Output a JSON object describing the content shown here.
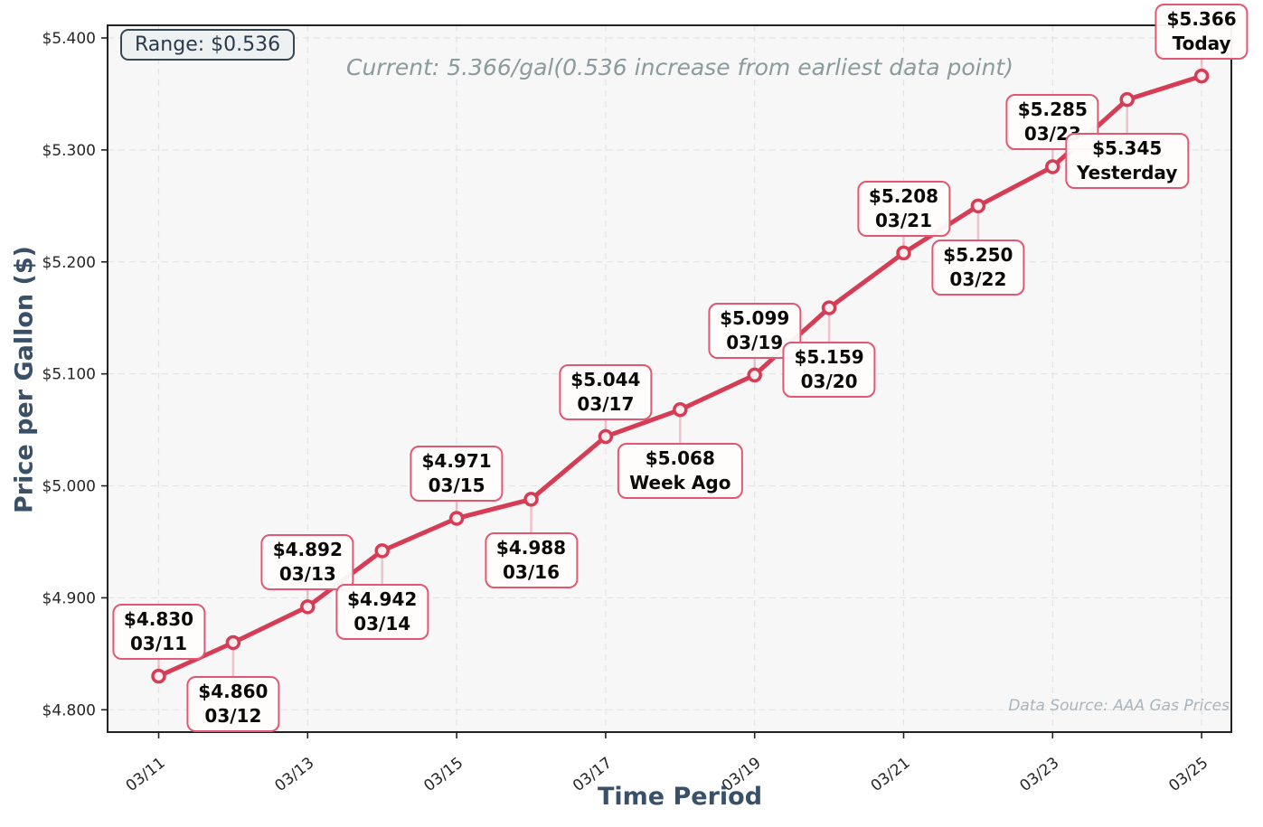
{
  "title": "Current: 5.366/gal(0.536 increase from earliest data point)",
  "range_badge": "Range: $0.536",
  "x_axis_label": "Time Period",
  "y_axis_label": "Price per Gallon ($)",
  "data_source": "Data Source: AAA Gas Prices",
  "colors": {
    "line": "#d63d55",
    "marker_fill": "#fdeef1",
    "annotation_border": "#e25872",
    "connector": "rgba(214,61,85,0.28)",
    "plot_bg": "#f7f7f8",
    "grid": "#e3e3e6",
    "spine": "#222222",
    "tick_text": "#262626",
    "axis_title": "#3a5068",
    "title_text": "#8b9a9b",
    "badge_text": "#2b3a4a",
    "source_text": "#a9b5bb"
  },
  "chart_data": {
    "type": "line",
    "title": "Current: 5.366/gal(0.536 increase from earliest data point)",
    "xlabel": "Time Period",
    "ylabel": "Price per Gallon ($)",
    "x": [
      "03/11",
      "03/12",
      "03/13",
      "03/14",
      "03/15",
      "03/16",
      "03/17",
      "03/18",
      "03/19",
      "03/20",
      "03/21",
      "03/22",
      "03/23",
      "03/24",
      "03/25"
    ],
    "values": [
      4.83,
      4.86,
      4.892,
      4.942,
      4.971,
      4.988,
      5.044,
      5.068,
      5.099,
      5.159,
      5.208,
      5.25,
      5.285,
      5.345,
      5.366
    ],
    "point_labels": [
      "03/11",
      "03/12",
      "03/13",
      "03/14",
      "03/15",
      "03/16",
      "03/17",
      "Week Ago",
      "03/19",
      "03/20",
      "03/21",
      "03/22",
      "03/23",
      "Yesterday",
      "Today"
    ],
    "x_tick_labels": [
      "03/11",
      "03/13",
      "03/15",
      "03/17",
      "03/19",
      "03/21",
      "03/23",
      "03/25"
    ],
    "y_ticks": [
      4.8,
      4.9,
      5.0,
      5.1,
      5.2,
      5.3,
      5.4
    ],
    "y_tick_labels": [
      "$4.800",
      "$4.900",
      "$5.000",
      "$5.100",
      "$5.200",
      "$5.300",
      "$5.400"
    ],
    "ylim": [
      4.78,
      5.411
    ],
    "grid": true,
    "legend": "none",
    "range": 0.536,
    "current": 5.366
  }
}
